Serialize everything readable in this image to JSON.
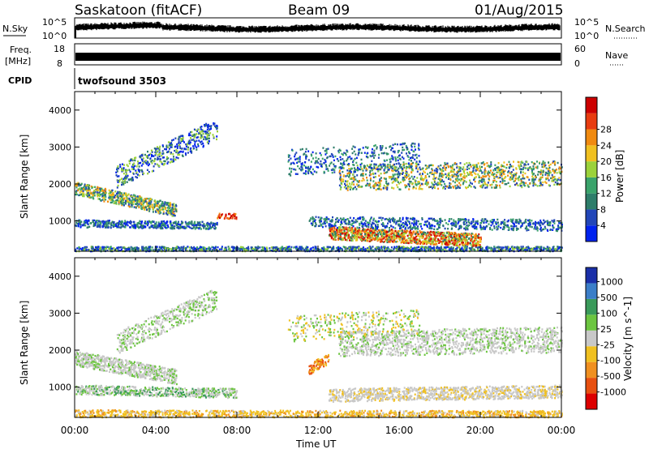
{
  "header": {
    "station": "Saskatoon (fitACF)",
    "beam": "Beam 09",
    "date": "01/Aug/2015"
  },
  "strips": {
    "nsky_label": "N.Sky",
    "nsky_ticks": [
      "10^5",
      "10^0"
    ],
    "nsearch_label": "N.Search",
    "freq_label_1": "Freq.",
    "freq_label_2": "[MHz]",
    "freq_ticks": [
      "18",
      "8"
    ],
    "nave_label": "Nave",
    "nave_ticks": [
      "60",
      "0"
    ],
    "cpid_label": "CPID",
    "cpid_value": "twofsound 3503"
  },
  "chart_data": [
    {
      "type": "heatmap",
      "name": "power",
      "ylabel": "Slant Range [km]",
      "yticks": [
        1000,
        2000,
        3000,
        4000
      ],
      "ylim": [
        180,
        4500
      ],
      "xlim": [
        0,
        24
      ],
      "colorbar": {
        "label": "Power [dB]",
        "ticks": [
          4,
          8,
          12,
          16,
          20,
          24,
          28
        ],
        "colors": [
          "#0022ee",
          "#2246b8",
          "#2e7d6a",
          "#3aa36b",
          "#9bd23a",
          "#f0c020",
          "#f08a10",
          "#e83c10",
          "#cc0000"
        ]
      }
    },
    {
      "type": "heatmap",
      "name": "velocity",
      "ylabel": "Slant Range [km]",
      "yticks": [
        1000,
        2000,
        3000,
        4000
      ],
      "ylim": [
        180,
        4500
      ],
      "xlim": [
        0,
        24
      ],
      "colorbar": {
        "label": "Velocity [m s^-1]",
        "ticks": [
          1000,
          500,
          100,
          25,
          -25,
          -100,
          -500,
          -1000
        ],
        "colors": [
          "#1a2fa8",
          "#3b7ec8",
          "#3a9a5a",
          "#6cc540",
          "#c8c8c8",
          "#f0c020",
          "#f09020",
          "#e85010",
          "#dd0000"
        ]
      }
    }
  ],
  "x_axis": {
    "label": "Time UT",
    "ticks": [
      "00:00",
      "04:00",
      "08:00",
      "12:00",
      "16:00",
      "20:00",
      "00:00"
    ]
  }
}
